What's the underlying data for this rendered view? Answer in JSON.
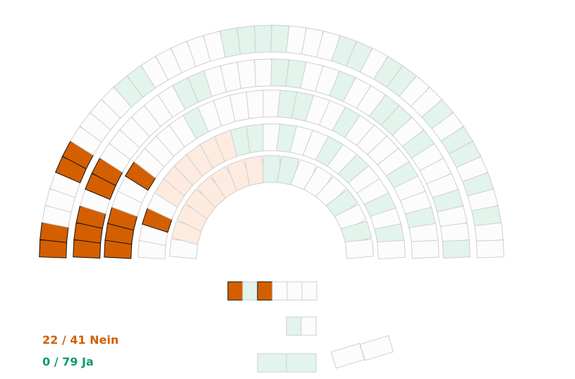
{
  "legend": {
    "nein_text": "22 / 41 Nein",
    "ja_text": "0 / 79 Ja"
  },
  "colors": {
    "nein_voted": "#d35f00",
    "nein_voted_stroke": "#111111",
    "nein_open": "#fdebdf",
    "ja_open": "#e2f4ec",
    "neutral": "#fcfcfc",
    "seat_stroke": "#cfcfcf",
    "legend_nein": "#d35f00",
    "legend_ja": "#0f9a72"
  },
  "totals": {
    "nein_cast": 22,
    "nein_total": 41,
    "ja_cast": 0,
    "ja_total": 79
  }
}
